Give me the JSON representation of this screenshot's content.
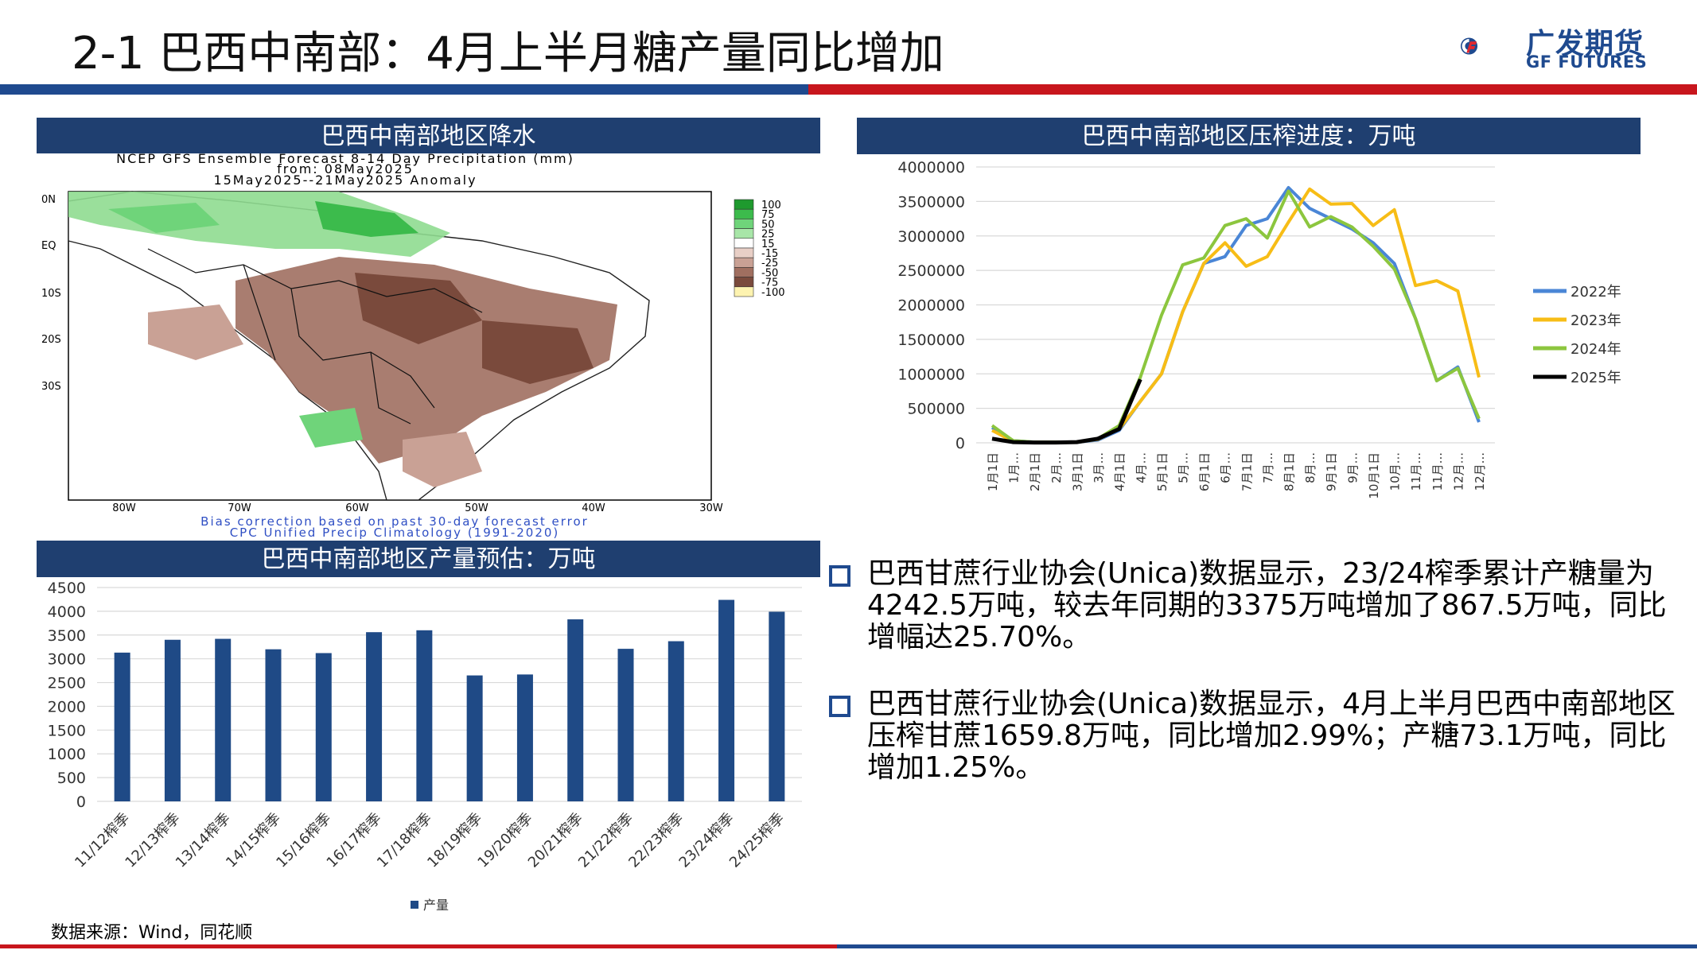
{
  "page": {
    "title": "2-1 巴西中南部：4月上半月糖产量同比增加",
    "logo_cn": "广发期货",
    "logo_en": "GF FUTURES",
    "source": "数据来源：Wind，同花顺"
  },
  "panels": {
    "precip_title": "巴西中南部地区降水",
    "crush_title": "巴西中南部地区压榨进度：万吨",
    "prod_title": "巴西中南部地区产量预估：万吨"
  },
  "precip_map": {
    "header_line1": "NCEP GFS Ensemble Forecast 8-14 Day Precipitation (mm)",
    "header_line2": "from: 08May2025",
    "header_line3": "15May2025--21May2025 Anomaly",
    "footer_line1": "Bias correction based on past 30-day forecast error",
    "footer_line2": "CPC Unified Precip Climatology (1991-2020)",
    "lat_labels": [
      "0N",
      "EQ",
      "10S",
      "20S",
      "30S"
    ],
    "lon_labels": [
      "80W",
      "70W",
      "60W",
      "50W",
      "40W",
      "30W"
    ],
    "legend": [
      {
        "label": "100",
        "color": "#1e9a2e"
      },
      {
        "label": "75",
        "color": "#3cbb4c"
      },
      {
        "label": "50",
        "color": "#6fd47a"
      },
      {
        "label": "25",
        "color": "#a8e6a8"
      },
      {
        "label": "15",
        "color": "#ffffff"
      },
      {
        "label": "-15",
        "color": "#e8cfc6"
      },
      {
        "label": "-25",
        "color": "#c9a195"
      },
      {
        "label": "-50",
        "color": "#a06f60"
      },
      {
        "label": "-75",
        "color": "#7a4a3c"
      },
      {
        "label": "-100",
        "color": "#fdf3b0"
      }
    ]
  },
  "bullets": [
    "巴西甘蔗行业协会(Unica)数据显示，23/24榨季累计产糖量为4242.5万吨，较去年同期的3375万吨增加了867.5万吨，同比增幅达25.70%。",
    "巴西甘蔗行业协会(Unica)数据显示，4月上半月巴西中南部地区压榨甘蔗1659.8万吨，同比增加2.99%；产糖73.1万吨，同比增加1.25%。"
  ],
  "chart_data": [
    {
      "type": "line",
      "title": "巴西中南部地区压榨进度：万吨",
      "categories": [
        "1月1日",
        "1月...",
        "2月1日",
        "2月...",
        "3月1日",
        "3月...",
        "4月1日",
        "4月...",
        "5月1日",
        "5月...",
        "6月1日",
        "6月...",
        "7月1日",
        "7月...",
        "8月1日",
        "8月...",
        "9月1日",
        "9月...",
        "10月1日",
        "10月...",
        "11月...",
        "11月...",
        "12月...",
        "12月..."
      ],
      "ylim": [
        0,
        4000000
      ],
      "yticks": [
        0,
        500000,
        1000000,
        1500000,
        2000000,
        2500000,
        3000000,
        3500000,
        4000000
      ],
      "legend_position": "right",
      "series": [
        {
          "name": "2022年",
          "color": "#4a86d6",
          "values": [
            220000,
            30000,
            10000,
            10000,
            10000,
            40000,
            180000,
            600000,
            1000000,
            1900000,
            2600000,
            2700000,
            3150000,
            3250000,
            3700000,
            3400000,
            3250000,
            3100000,
            2900000,
            2600000,
            1800000,
            900000,
            1100000,
            300000
          ]
        },
        {
          "name": "2023年",
          "color": "#f7bd16",
          "values": [
            180000,
            20000,
            10000,
            10000,
            10000,
            50000,
            200000,
            600000,
            1000000,
            1900000,
            2600000,
            2900000,
            2560000,
            2700000,
            3200000,
            3680000,
            3460000,
            3470000,
            3150000,
            3380000,
            2280000,
            2350000,
            2200000,
            950000
          ]
        },
        {
          "name": "2024年",
          "color": "#8cc63e",
          "values": [
            250000,
            30000,
            10000,
            10000,
            10000,
            60000,
            250000,
            950000,
            1850000,
            2580000,
            2680000,
            3150000,
            3250000,
            2970000,
            3650000,
            3130000,
            3280000,
            3130000,
            2850000,
            2520000,
            1800000,
            900000,
            1080000,
            350000
          ]
        },
        {
          "name": "2025年",
          "color": "#000000",
          "values": [
            60000,
            10000,
            5000,
            5000,
            10000,
            60000,
            200000,
            920000,
            null,
            null,
            null,
            null,
            null,
            null,
            null,
            null,
            null,
            null,
            null,
            null,
            null,
            null,
            null,
            null
          ]
        }
      ]
    },
    {
      "type": "bar",
      "title": "巴西中南部地区产量预估：万吨",
      "categories": [
        "11/12榨季",
        "12/13榨季",
        "13/14榨季",
        "14/15榨季",
        "15/16榨季",
        "16/17榨季",
        "17/18榨季",
        "18/19榨季",
        "19/20榨季",
        "20/21榨季",
        "21/22榨季",
        "22/23榨季",
        "23/24榨季",
        "24/25榨季"
      ],
      "ylim": [
        0,
        4500
      ],
      "yticks": [
        0,
        500,
        1000,
        1500,
        2000,
        2500,
        3000,
        3500,
        4000,
        4500
      ],
      "legend_position": "bottom",
      "series": [
        {
          "name": "产量",
          "color": "#1f4a86",
          "values": [
            3130,
            3400,
            3420,
            3200,
            3120,
            3560,
            3600,
            2650,
            2670,
            3830,
            3210,
            3370,
            4240,
            3990
          ]
        }
      ]
    }
  ]
}
